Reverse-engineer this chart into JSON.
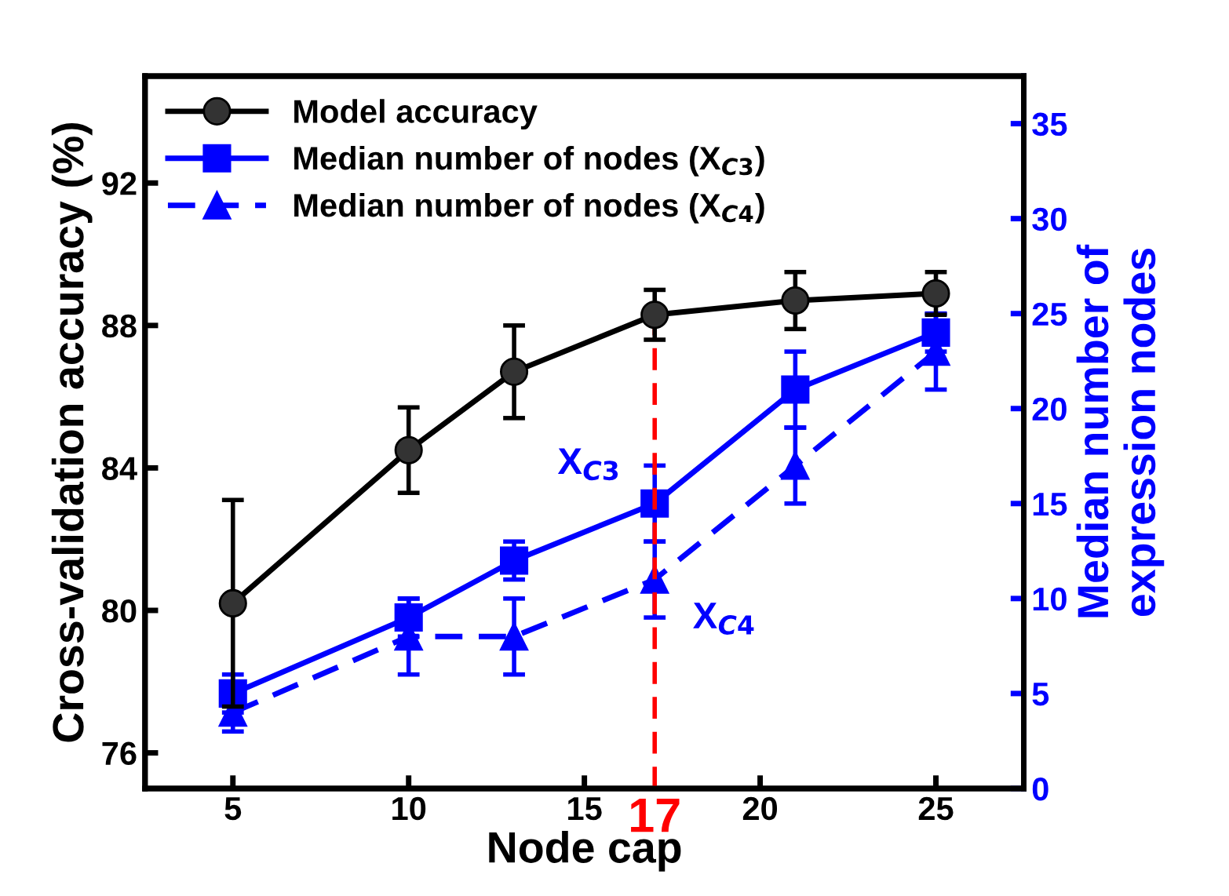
{
  "chart_data": {
    "type": "line",
    "xlabel": "Node cap",
    "ylabel": "Cross-validation accuracy (%)",
    "y2label": "Median number of\nexpression nodes",
    "x": [
      5,
      10,
      13,
      17,
      21,
      25
    ],
    "series": [
      {
        "name": "Model accuracy",
        "color": "#000000",
        "marker": "circle",
        "line_style": "solid",
        "values": [
          80.2,
          84.5,
          86.7,
          88.3,
          88.7,
          88.9
        ],
        "errors": [
          2.9,
          1.2,
          1.3,
          0.7,
          0.8,
          0.6
        ]
      },
      {
        "name": "Median number of nodes (X$_{C3}$)",
        "color": "#0000ff",
        "marker": "square",
        "line_style": "solid",
        "axis": "y2",
        "values": [
          5,
          9,
          12,
          15,
          21,
          24
        ],
        "errors": [
          1,
          1,
          1,
          2,
          2,
          1
        ]
      },
      {
        "name": "Median number of nodes (X$_{C4}$)",
        "color": "#0000ff",
        "marker": "triangle",
        "line_style": "dashed",
        "axis": "y2",
        "values": [
          4,
          8,
          8,
          11,
          17,
          23
        ],
        "errors": [
          1,
          2,
          2,
          2,
          2,
          2
        ]
      }
    ],
    "xlim": [
      2.5,
      27.5
    ],
    "xticks": [
      5,
      10,
      15,
      20,
      25
    ],
    "ylim": [
      75,
      95
    ],
    "yticks": [
      76,
      80,
      84,
      88,
      92
    ],
    "y2lim": [
      0,
      37.5
    ],
    "y2ticks": [
      0,
      5,
      10,
      15,
      20,
      25,
      30,
      35
    ],
    "ref_lines": [
      {
        "axis": "x",
        "value": 17,
        "label": "17",
        "color": "#ff0000",
        "line_style": "dashed"
      }
    ],
    "annotations": [
      "X$_{C3}$",
      "X$_{C4}$"
    ],
    "legend": "top left",
    "grid": false
  }
}
